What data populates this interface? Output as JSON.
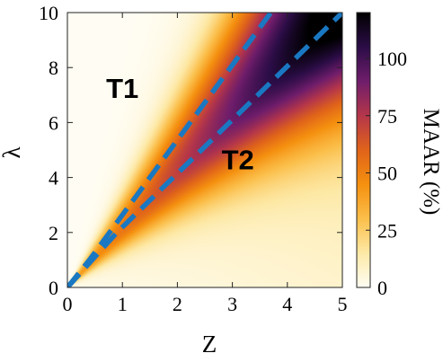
{
  "chart_data": {
    "type": "heatmap",
    "xlabel": "Z",
    "ylabel": "λ",
    "xlim": [
      0,
      5
    ],
    "ylim": [
      0,
      10
    ],
    "x_ticks": [
      "0",
      "1",
      "2",
      "3",
      "4",
      "5"
    ],
    "y_ticks": [
      "0",
      "2",
      "4",
      "6",
      "8",
      "10"
    ],
    "colorbar": {
      "label": "MAAR (%)",
      "range": [
        0,
        120
      ],
      "ticks": [
        "0",
        "25",
        "50",
        "75",
        "100"
      ],
      "tick_values": [
        0,
        25,
        50,
        75,
        100
      ],
      "colormap": [
        "#fffdf3",
        "#fde9a6",
        "#fbbf4a",
        "#f5900f",
        "#e0631a",
        "#b5364a",
        "#6f1d6b",
        "#2b0d46",
        "#000000"
      ]
    },
    "field": {
      "description_values": [
        {
          "z": 1.0,
          "lambda": 2.4,
          "maar": 55
        },
        {
          "z": 2.5,
          "lambda": 5.6,
          "maar": 80
        },
        {
          "z": 4.5,
          "lambda": 9.5,
          "maar": 110
        }
      ]
    },
    "boundary_lines": [
      {
        "name": "",
        "points": [
          [
            0,
            0
          ],
          [
            0.4,
            1
          ],
          [
            3.7,
            10
          ]
        ],
        "color": "#1a78c2"
      },
      {
        "name": "",
        "points": [
          [
            0,
            0
          ],
          [
            0.9,
            2
          ],
          [
            5.0,
            10
          ]
        ],
        "color": "#1a78c2"
      }
    ],
    "annotations": [
      {
        "text": "T1",
        "z": 1.0,
        "lambda": 6.9
      },
      {
        "text": "T2",
        "z": 3.1,
        "lambda": 4.3
      }
    ]
  }
}
